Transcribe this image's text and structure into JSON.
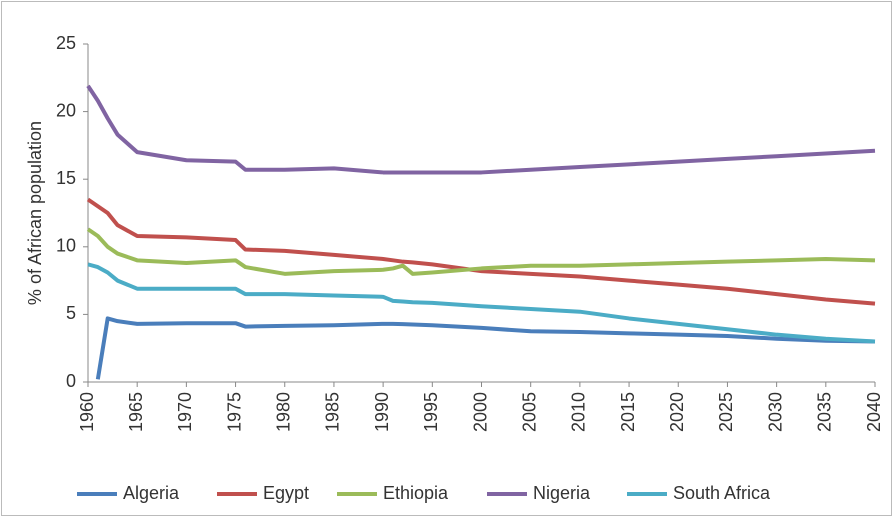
{
  "chart_data": {
    "type": "line",
    "y_label": "% of African population",
    "x": [
      1960,
      1961,
      1962,
      1963,
      1965,
      1970,
      1975,
      1976,
      1980,
      1985,
      1990,
      1991,
      1992,
      1993,
      1995,
      2000,
      2005,
      2010,
      2015,
      2020,
      2025,
      2030,
      2035,
      2040
    ],
    "series": [
      {
        "name": "Algeria",
        "color": "#4a7ebb",
        "values": [
          null,
          0.2,
          4.7,
          4.5,
          4.3,
          4.35,
          4.35,
          4.1,
          4.15,
          4.2,
          4.3,
          4.3,
          4.28,
          4.25,
          4.2,
          4.0,
          3.75,
          3.7,
          3.6,
          3.5,
          3.4,
          3.2,
          3.05,
          3.0
        ]
      },
      {
        "name": "Egypt",
        "color": "#c0504d",
        "values": [
          13.5,
          13.0,
          12.5,
          11.6,
          10.8,
          10.7,
          10.5,
          9.8,
          9.7,
          9.4,
          9.1,
          9.0,
          8.9,
          8.85,
          8.7,
          8.2,
          8.0,
          7.8,
          7.5,
          7.2,
          6.9,
          6.5,
          6.1,
          5.8
        ]
      },
      {
        "name": "Ethiopia",
        "color": "#9bbb59",
        "values": [
          11.3,
          10.8,
          10.0,
          9.5,
          9.0,
          8.8,
          9.0,
          8.5,
          8.0,
          8.2,
          8.3,
          8.4,
          8.6,
          8.0,
          8.1,
          8.4,
          8.6,
          8.6,
          8.7,
          8.8,
          8.9,
          9.0,
          9.1,
          9.0
        ]
      },
      {
        "name": "Nigeria",
        "color": "#8064a2",
        "values": [
          21.9,
          20.8,
          19.5,
          18.3,
          17.0,
          16.4,
          16.3,
          15.7,
          15.7,
          15.8,
          15.5,
          15.5,
          15.5,
          15.5,
          15.5,
          15.5,
          15.7,
          15.9,
          16.1,
          16.3,
          16.5,
          16.7,
          16.9,
          17.1
        ]
      },
      {
        "name": "South Africa",
        "color": "#4bacc6",
        "values": [
          8.7,
          8.5,
          8.1,
          7.5,
          6.9,
          6.9,
          6.9,
          6.5,
          6.5,
          6.4,
          6.3,
          6.0,
          5.95,
          5.9,
          5.85,
          5.6,
          5.4,
          5.2,
          4.7,
          4.3,
          3.9,
          3.5,
          3.2,
          3.0
        ]
      }
    ],
    "xlim": [
      1960,
      2040
    ],
    "xticks": [
      1960,
      1965,
      1970,
      1975,
      1980,
      1985,
      1990,
      1995,
      2000,
      2005,
      2010,
      2015,
      2020,
      2025,
      2030,
      2035,
      2040
    ],
    "ylim": [
      0,
      25
    ],
    "yticks": [
      0,
      5,
      10,
      15,
      20,
      25
    ],
    "grid": false,
    "legend": "bottom"
  }
}
